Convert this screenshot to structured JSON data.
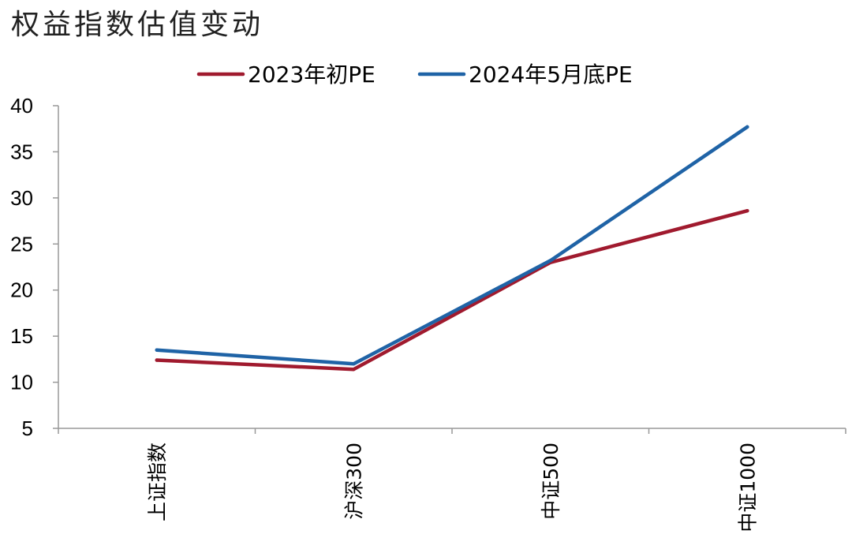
{
  "chart_data": {
    "type": "line",
    "title": "权益指数估值变动",
    "categories": [
      "上证指数",
      "沪深300",
      "中证500",
      "中证1000"
    ],
    "series": [
      {
        "name": "2023年初PE",
        "values": [
          12.4,
          11.4,
          23.0,
          28.6
        ],
        "color": "#A01A2E"
      },
      {
        "name": "2024年5月底PE",
        "values": [
          13.5,
          12.0,
          23.2,
          37.7
        ],
        "color": "#1F63A6"
      }
    ],
    "ylim": [
      5,
      40
    ],
    "yticks": [
      5,
      10,
      15,
      20,
      25,
      30,
      35,
      40
    ],
    "xlabel": "",
    "ylabel": "",
    "grid": false,
    "legend": "top-center"
  }
}
